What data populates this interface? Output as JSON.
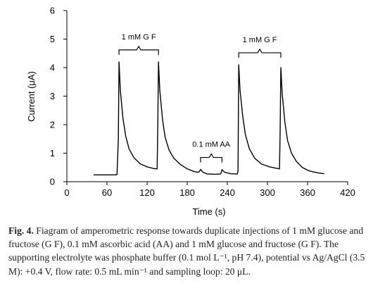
{
  "chart_data": {
    "type": "line",
    "xlabel": "Time (s)",
    "ylabel": "Current (μA)",
    "xlim": [
      0,
      420
    ],
    "ylim": [
      0,
      6
    ],
    "xticks": [
      "0",
      "60",
      "120",
      "180",
      "240",
      "300",
      "360",
      "420"
    ],
    "yticks": [
      "0",
      "1",
      "2",
      "3",
      "4",
      "5",
      "6"
    ],
    "grid": false,
    "series": [
      {
        "points": [
          [
            40,
            0.24
          ],
          [
            72,
            0.24
          ],
          [
            75,
            0.25
          ],
          [
            77,
            1.5
          ],
          [
            78,
            4.2
          ],
          [
            80,
            3.2
          ],
          [
            84,
            2.2
          ],
          [
            88,
            1.6
          ],
          [
            93,
            1.15
          ],
          [
            100,
            0.85
          ],
          [
            110,
            0.62
          ],
          [
            120,
            0.52
          ],
          [
            130,
            0.46
          ],
          [
            135,
            0.45
          ],
          [
            136,
            2.0
          ],
          [
            137,
            4.2
          ],
          [
            139,
            3.2
          ],
          [
            143,
            2.2
          ],
          [
            147,
            1.55
          ],
          [
            153,
            1.1
          ],
          [
            160,
            0.82
          ],
          [
            170,
            0.6
          ],
          [
            180,
            0.45
          ],
          [
            190,
            0.36
          ],
          [
            196,
            0.33
          ],
          [
            198,
            0.35
          ],
          [
            200,
            0.43
          ],
          [
            203,
            0.34
          ],
          [
            210,
            0.27
          ],
          [
            222,
            0.26
          ],
          [
            230,
            0.27
          ],
          [
            232,
            0.42
          ],
          [
            236,
            0.33
          ],
          [
            245,
            0.28
          ],
          [
            255,
            0.27
          ],
          [
            256,
            0.4
          ],
          [
            257,
            4.1
          ],
          [
            259,
            3.2
          ],
          [
            263,
            2.3
          ],
          [
            267,
            1.65
          ],
          [
            273,
            1.15
          ],
          [
            281,
            0.82
          ],
          [
            291,
            0.62
          ],
          [
            303,
            0.52
          ],
          [
            318,
            0.45
          ],
          [
            319,
            1.8
          ],
          [
            320,
            4.0
          ],
          [
            322,
            3.1
          ],
          [
            326,
            2.1
          ],
          [
            330,
            1.45
          ],
          [
            336,
            1.0
          ],
          [
            343,
            0.72
          ],
          [
            352,
            0.5
          ],
          [
            362,
            0.38
          ],
          [
            375,
            0.31
          ],
          [
            385,
            0.28
          ]
        ]
      }
    ],
    "annotations": [
      {
        "text": "1 mM G F",
        "x_range": [
          78,
          137
        ]
      },
      {
        "text": "0.1 mM AA",
        "x_range": [
          200,
          232
        ]
      },
      {
        "text": "1 mM G F",
        "x_range": [
          257,
          320
        ]
      }
    ]
  },
  "caption": {
    "label": "Fig. 4.",
    "text": "Fiagram of amperometric response towards duplicate injections of 1 mM glucose and fructose (G F), 0.1 mM ascorbic acid (AA) and 1 mM glucose and fructose (G F). The supporting electrolyte was phosphate buffer (0.1 mol L⁻¹, pH 7.4), potential vs Ag/AgCl (3.5 M): +0.4 V, flow rate: 0.5 mL min⁻¹ and sampling loop: 20 μL."
  }
}
